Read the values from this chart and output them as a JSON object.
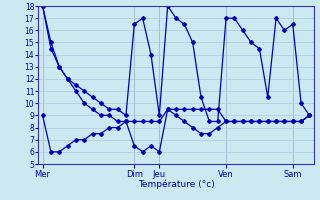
{
  "xlabel": "Température (°c)",
  "background_color": "#cce8f0",
  "grid_color": "#aaccdd",
  "line_color": "#0000bb",
  "ylim": [
    5,
    18
  ],
  "yticks": [
    5,
    6,
    7,
    8,
    9,
    10,
    11,
    12,
    13,
    14,
    15,
    16,
    17,
    18
  ],
  "day_labels": [
    "Mer",
    "Dim",
    "Jeu",
    "Ven",
    "Sam"
  ],
  "day_positions": [
    0,
    11,
    14,
    22,
    30
  ],
  "num_points": 33,
  "series1": [
    18,
    15,
    13,
    12,
    11,
    10,
    9.5,
    9,
    9,
    8.5,
    8.5,
    8.5,
    8.5,
    8.5,
    8.5,
    9.5,
    9.5,
    9.5,
    9.5,
    9.5,
    9.5,
    9.5,
    8.5,
    8.5,
    8.5,
    8.5,
    8.5,
    8.5,
    8.5,
    8.5,
    8.5,
    8.5,
    9
  ],
  "series2": [
    18,
    14.5,
    13,
    12,
    11.5,
    11,
    10.5,
    10,
    9.5,
    9.5,
    9,
    16.5,
    17,
    14,
    9,
    18,
    17,
    16.5,
    15,
    10.5,
    8.5,
    8.5,
    17,
    17,
    16,
    15,
    14.5,
    10.5,
    17,
    16,
    16.5,
    10,
    9
  ],
  "series3": [
    9,
    6,
    6,
    6.5,
    7,
    7,
    7.5,
    7.5,
    8,
    8,
    8.5,
    6.5,
    6,
    6.5,
    6,
    9.5,
    9,
    8.5,
    8,
    7.5,
    7.5,
    8,
    8.5,
    8.5,
    8.5,
    8.5,
    8.5,
    8.5,
    8.5,
    8.5,
    8.5,
    8.5,
    9
  ]
}
